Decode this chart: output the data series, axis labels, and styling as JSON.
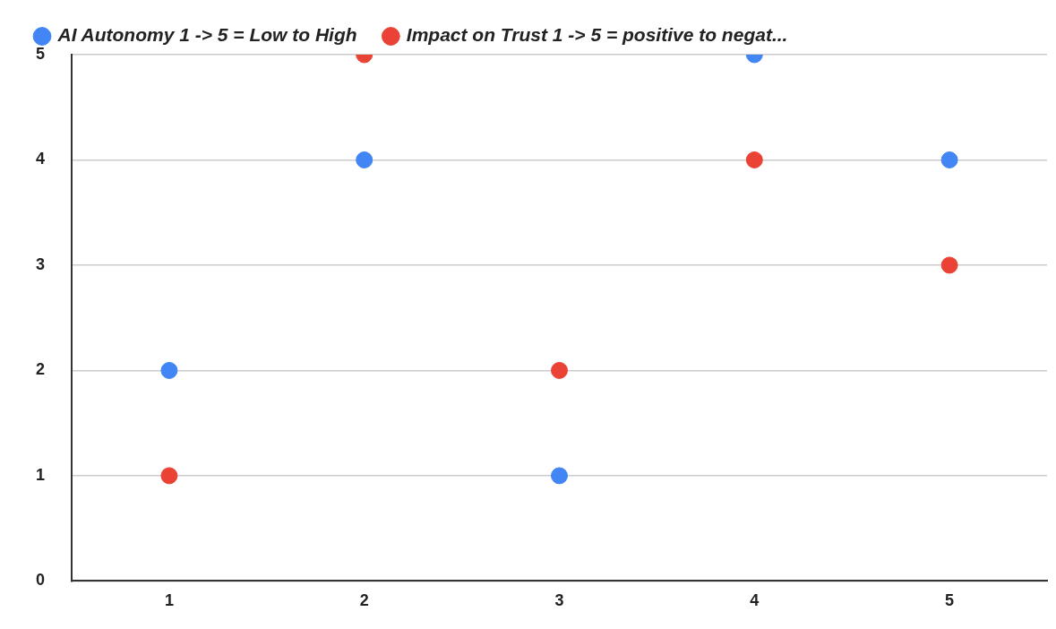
{
  "chart_data": {
    "type": "scatter",
    "categories": [
      "1",
      "2",
      "3",
      "4",
      "5"
    ],
    "series": [
      {
        "name": "AI Autonomy 1 -> 5 = Low to High",
        "color": "#4285f4",
        "values": [
          2,
          4,
          1,
          5,
          4
        ]
      },
      {
        "name": "Impact on Trust 1 -> 5 = positive to negat...",
        "color": "#ea4335",
        "values": [
          1,
          5,
          2,
          4,
          3
        ]
      }
    ],
    "ylim": [
      0,
      5
    ],
    "yticks": [
      0,
      1,
      2,
      3,
      4,
      5
    ],
    "grid": "y",
    "legend": "top left",
    "marker": "circle"
  }
}
